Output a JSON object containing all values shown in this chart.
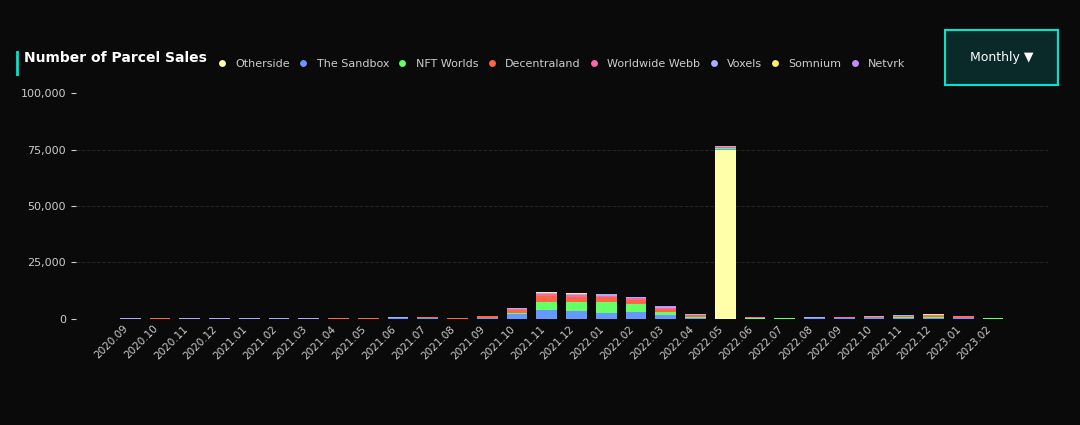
{
  "title": "Number of Parcel Sales",
  "background_color": "#0a0a0a",
  "plot_bg_color": "#0a0a0a",
  "text_color": "#cccccc",
  "grid_color": "#333333",
  "title_bar_color": "#00e5cc",
  "platforms": [
    "Otherside",
    "The Sandbox",
    "NFT Worlds",
    "Decentraland",
    "Worldwide Webb",
    "Voxels",
    "Somnium",
    "Netvrk"
  ],
  "platform_colors": [
    "#ffffaa",
    "#6699ff",
    "#66ff66",
    "#ff6644",
    "#ff66aa",
    "#aaaaff",
    "#ffee66",
    "#cc88ff"
  ],
  "months": [
    "2020.09",
    "2020.10",
    "2020.11",
    "2020.12",
    "2021.01",
    "2021.02",
    "2021.03",
    "2021.04",
    "2021.05",
    "2021.06",
    "2021.07",
    "2021.08",
    "2021.09",
    "2021.10",
    "2021.11",
    "2021.12",
    "2022.01",
    "2022.02",
    "2022.03",
    "2022.04",
    "2022.05",
    "2022.06",
    "2022.07",
    "2022.08",
    "2022.09",
    "2022.10",
    "2022.11",
    "2022.12",
    "2023.01",
    "2023.02"
  ],
  "data": {
    "Otherside": [
      0,
      0,
      0,
      0,
      0,
      0,
      0,
      0,
      0,
      0,
      0,
      0,
      0,
      0,
      0,
      0,
      0,
      0,
      0,
      0,
      75000,
      0,
      0,
      0,
      0,
      0,
      0,
      0,
      0,
      0
    ],
    "The Sandbox": [
      0,
      0,
      0,
      0,
      0,
      0,
      0,
      0,
      100,
      200,
      200,
      100,
      500,
      2000,
      4000,
      3500,
      2500,
      3000,
      1500,
      500,
      500,
      100,
      100,
      200,
      200,
      300,
      500,
      500,
      300,
      100
    ],
    "NFT Worlds": [
      0,
      0,
      0,
      0,
      0,
      0,
      0,
      0,
      0,
      0,
      0,
      0,
      0,
      500,
      3500,
      4000,
      5000,
      3500,
      1500,
      300,
      200,
      100,
      50,
      50,
      50,
      100,
      200,
      300,
      200,
      50
    ],
    "Decentraland": [
      100,
      150,
      100,
      100,
      100,
      100,
      100,
      200,
      200,
      300,
      400,
      300,
      500,
      1500,
      2500,
      2000,
      2000,
      2000,
      1500,
      800,
      600,
      300,
      200,
      200,
      300,
      400,
      500,
      600,
      400,
      200
    ],
    "Worldwide Webb": [
      0,
      0,
      0,
      0,
      0,
      0,
      0,
      0,
      0,
      0,
      0,
      0,
      0,
      200,
      800,
      1000,
      800,
      600,
      400,
      200,
      150,
      100,
      50,
      50,
      50,
      100,
      150,
      200,
      150,
      50
    ],
    "Voxels": [
      50,
      50,
      50,
      50,
      50,
      50,
      50,
      100,
      100,
      150,
      150,
      100,
      200,
      500,
      800,
      700,
      600,
      500,
      400,
      200,
      150,
      100,
      80,
      80,
      100,
      150,
      200,
      250,
      200,
      100
    ],
    "Somnium": [
      0,
      0,
      0,
      0,
      0,
      0,
      0,
      0,
      0,
      0,
      0,
      0,
      0,
      100,
      200,
      300,
      200,
      150,
      100,
      50,
      50,
      30,
      20,
      20,
      30,
      50,
      80,
      100,
      80,
      30
    ],
    "Netvrk": [
      0,
      0,
      0,
      0,
      0,
      0,
      0,
      0,
      0,
      0,
      0,
      0,
      0,
      50,
      100,
      150,
      100,
      80,
      50,
      20,
      10,
      0,
      0,
      0,
      0,
      0,
      30,
      50,
      30,
      10
    ]
  },
  "ylim": [
    0,
    100000
  ],
  "yticks": [
    0,
    25000,
    50000,
    75000,
    100000
  ],
  "button_color": "#0a2a2a",
  "button_border_color": "#00e5cc",
  "button_text": "Monthly ▼"
}
